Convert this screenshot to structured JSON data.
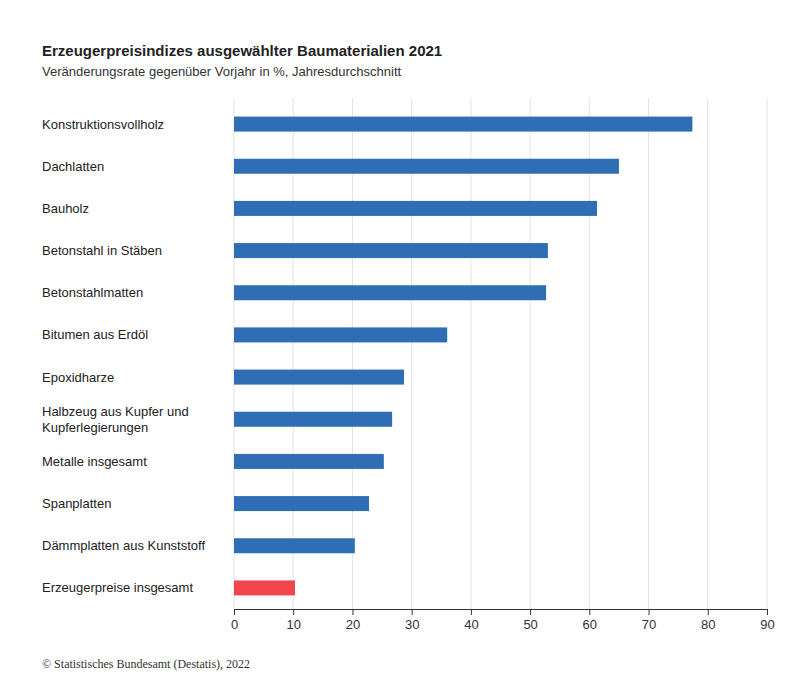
{
  "chart_data": {
    "type": "bar",
    "orientation": "horizontal",
    "title": "Erzeugerpreisindizes ausgewählter Baumaterialien 2021",
    "subtitle": "Veränderungsrate gegenüber Vorjahr in %, Jahresdurchschnitt",
    "source": "© Statistisches Bundesamt (Destatis), 2022",
    "categories": [
      "Konstruktionsvollholz",
      "Dachlatten",
      "Bauholz",
      "Betonstahl in Stäben",
      "Betonstahlmatten",
      "Bitumen aus Erdöl",
      "Epoxidharze",
      "Halbzeug aus Kupfer und Kupferlegierungen",
      "Metalle insgesamt",
      "Spanplatten",
      "Dämmplatten aus Kunststoff",
      "Erzeugerpreise insgesamt"
    ],
    "values": [
      77.4,
      65.0,
      61.3,
      53.0,
      52.7,
      36.0,
      28.7,
      26.7,
      25.3,
      22.8,
      20.4,
      10.3
    ],
    "colors": [
      "#2f6db5",
      "#2f6db5",
      "#2f6db5",
      "#2f6db5",
      "#2f6db5",
      "#2f6db5",
      "#2f6db5",
      "#2f6db5",
      "#2f6db5",
      "#2f6db5",
      "#2f6db5",
      "#f2464f"
    ],
    "xlim": [
      0,
      90
    ],
    "xticks": [
      0,
      10,
      20,
      30,
      40,
      50,
      60,
      70,
      80,
      90
    ],
    "grid": true
  }
}
